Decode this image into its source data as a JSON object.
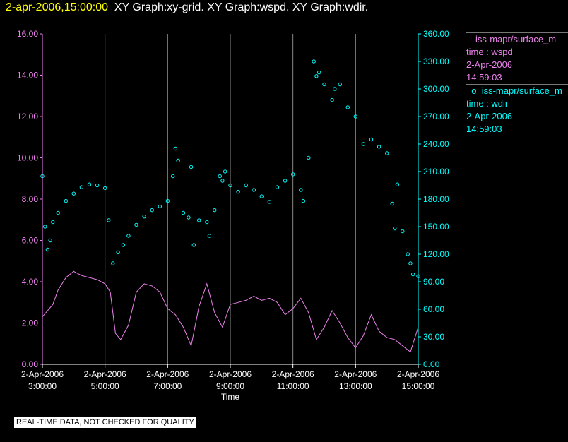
{
  "header": {
    "timestamp": "2-apr-2006,15:00:00",
    "graphs": "XY Graph:xy-grid.  XY Graph:wspd.  XY Graph:wdir."
  },
  "legend": {
    "entries": [
      {
        "marker": "line",
        "name": "iss-mapr/surface_m",
        "field": "time : wspd",
        "date": "2-Apr-2006",
        "time": "14:59:03"
      },
      {
        "marker": "circle",
        "name": "iss-mapr/surface_m",
        "field": "time : wdir",
        "date": "2-Apr-2006",
        "time": "14:59:03"
      }
    ]
  },
  "caption": "REAL-TIME DATA, NOT CHECKED FOR QUALITY",
  "colors": {
    "wspd": "#ee82ee",
    "wdir": "#00ffff",
    "left_axis": "#ee82ee",
    "right_axis": "#00ffff",
    "grid": "#888888",
    "header_timestamp": "#ffff00"
  },
  "chart_data": {
    "type": "line",
    "xlabel": "Time",
    "x_ticks": [
      {
        "date": "2-Apr-2006",
        "time": "3:00:00"
      },
      {
        "date": "2-Apr-2006",
        "time": "5:00:00"
      },
      {
        "date": "2-Apr-2006",
        "time": "7:00:00"
      },
      {
        "date": "2-Apr-2006",
        "time": "9:00:00"
      },
      {
        "date": "2-Apr-2006",
        "time": "11:00:00"
      },
      {
        "date": "2-Apr-2006",
        "time": "13:00:00"
      },
      {
        "date": "2-Apr-2006",
        "time": "15:00:00"
      }
    ],
    "xlim": [
      "03:00",
      "15:00"
    ],
    "grid": "vertical",
    "y_left": {
      "ylim": [
        0,
        16
      ],
      "ticks": [
        "0.00",
        "2.00",
        "4.00",
        "6.00",
        "8.00",
        "10.00",
        "12.00",
        "14.00",
        "16.00"
      ]
    },
    "y_right": {
      "ylim": [
        0,
        360
      ],
      "ticks": [
        "0.00",
        "30.00",
        "60.00",
        "90.00",
        "120.00",
        "150.00",
        "180.00",
        "210.00",
        "240.00",
        "270.00",
        "300.00",
        "330.00",
        "360.00"
      ]
    },
    "series": [
      {
        "axis": "left",
        "style": "line",
        "x": [
          "03:00",
          "03:10",
          "03:20",
          "03:30",
          "03:45",
          "04:00",
          "04:15",
          "04:30",
          "04:45",
          "05:00",
          "05:10",
          "05:20",
          "05:30",
          "05:45",
          "06:00",
          "06:15",
          "06:30",
          "06:45",
          "07:00",
          "07:15",
          "07:30",
          "07:45",
          "08:00",
          "08:15",
          "08:30",
          "08:45",
          "09:00",
          "09:15",
          "09:30",
          "09:45",
          "10:00",
          "10:15",
          "10:30",
          "10:45",
          "11:00",
          "11:15",
          "11:30",
          "11:45",
          "12:00",
          "12:15",
          "12:30",
          "12:45",
          "13:00",
          "13:15",
          "13:30",
          "13:45",
          "14:00",
          "14:15",
          "14:30",
          "14:45",
          "15:00"
        ],
        "values": [
          2.3,
          2.6,
          2.9,
          3.6,
          4.2,
          4.5,
          4.3,
          4.2,
          4.1,
          3.9,
          3.5,
          1.5,
          1.2,
          1.9,
          3.5,
          3.9,
          3.8,
          3.5,
          2.7,
          2.4,
          1.8,
          0.9,
          2.8,
          3.9,
          2.5,
          1.8,
          2.9,
          3.0,
          3.1,
          3.3,
          3.1,
          3.2,
          3.0,
          2.4,
          2.7,
          3.2,
          2.5,
          1.2,
          1.8,
          2.6,
          2.0,
          1.3,
          0.8,
          1.4,
          2.4,
          1.6,
          1.3,
          1.2,
          0.9,
          0.6,
          1.8
        ]
      },
      {
        "axis": "right",
        "style": "scatter",
        "x": [
          "03:00",
          "03:05",
          "03:10",
          "03:15",
          "03:20",
          "03:30",
          "03:45",
          "04:00",
          "04:15",
          "04:30",
          "04:45",
          "05:00",
          "05:07",
          "05:15",
          "05:25",
          "05:35",
          "05:45",
          "06:00",
          "06:15",
          "06:30",
          "06:45",
          "07:00",
          "07:10",
          "07:15",
          "07:20",
          "07:30",
          "07:40",
          "07:45",
          "07:50",
          "08:00",
          "08:15",
          "08:20",
          "08:30",
          "08:40",
          "08:45",
          "08:50",
          "09:00",
          "09:15",
          "09:30",
          "09:45",
          "10:00",
          "10:15",
          "10:30",
          "10:45",
          "11:00",
          "11:15",
          "11:20",
          "11:30",
          "11:40",
          "11:45",
          "11:50",
          "12:00",
          "12:15",
          "12:20",
          "12:30",
          "12:45",
          "13:00",
          "13:15",
          "13:30",
          "13:45",
          "14:00",
          "14:10",
          "14:15",
          "14:20",
          "14:30",
          "14:40",
          "14:45",
          "14:50",
          "15:00"
        ],
        "values": [
          205,
          150,
          125,
          135,
          155,
          165,
          178,
          186,
          193,
          196,
          195,
          192,
          157,
          110,
          122,
          130,
          140,
          152,
          161,
          168,
          172,
          178,
          205,
          235,
          222,
          165,
          160,
          215,
          130,
          157,
          155,
          140,
          168,
          205,
          200,
          210,
          195,
          188,
          195,
          190,
          183,
          177,
          193,
          200,
          207,
          190,
          178,
          225,
          330,
          314,
          318,
          305,
          288,
          300,
          305,
          280,
          270,
          240,
          245,
          237,
          230,
          175,
          148,
          196,
          145,
          120,
          110,
          98,
          96
        ]
      }
    ]
  }
}
